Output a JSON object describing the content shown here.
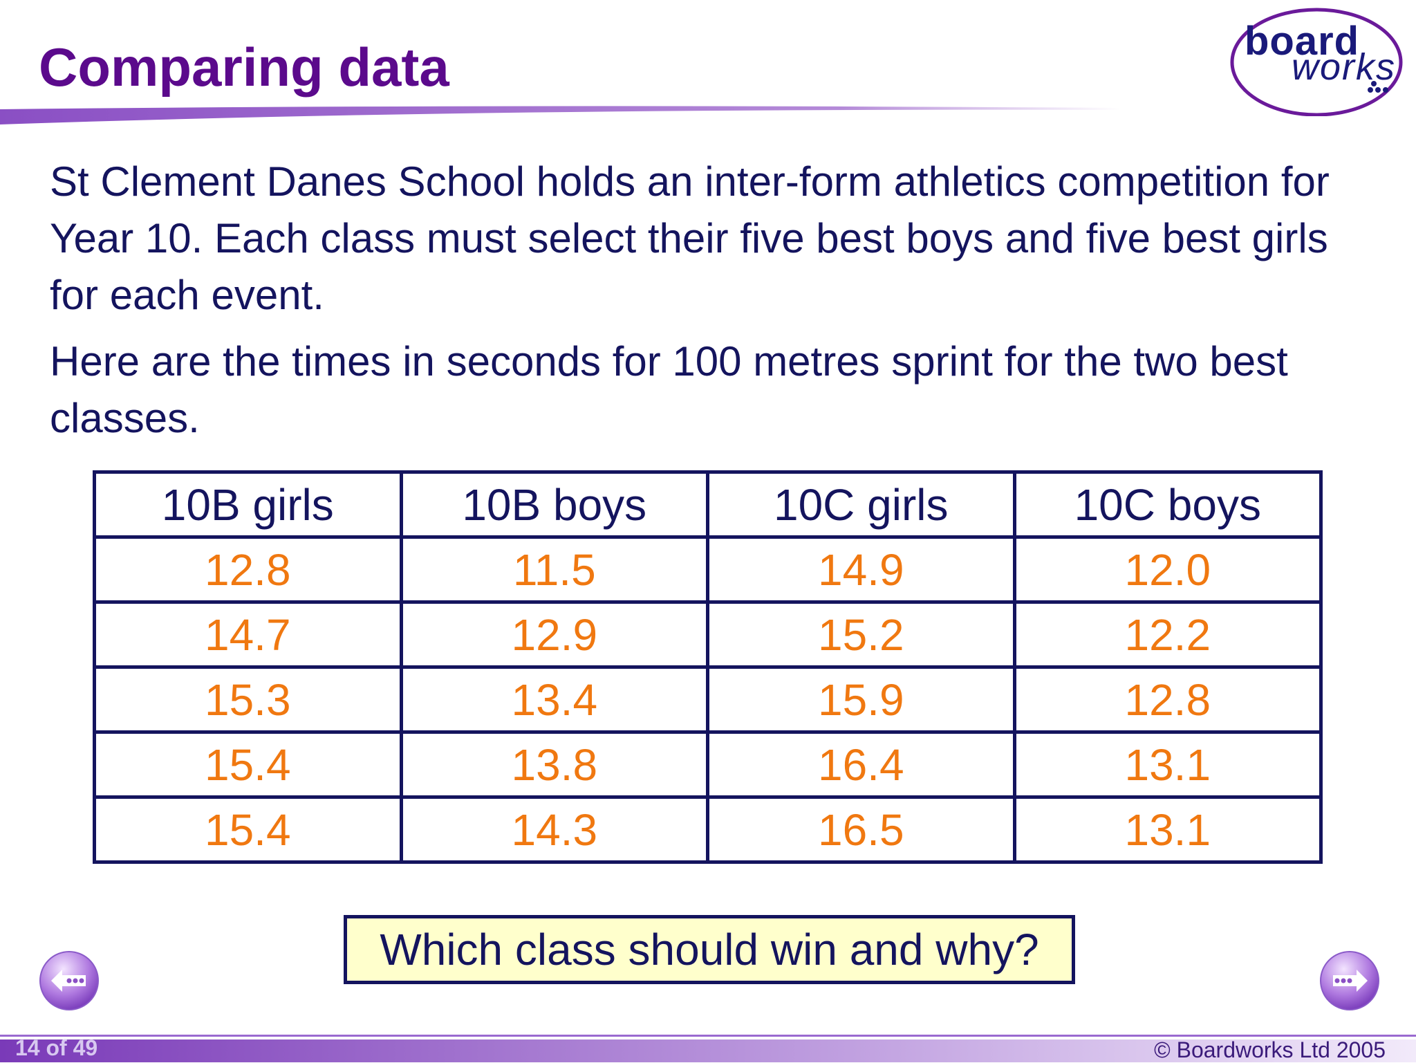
{
  "title": "Comparing data",
  "logo": {
    "word1": "board",
    "word2": "works"
  },
  "intro": [
    "St Clement Danes School holds an inter-form athletics competition for Year 10. Each class must select their five best boys and five best girls for each event.",
    "Here are the times in seconds for 100 metres sprint for the two best classes."
  ],
  "table": {
    "headers": [
      "10B girls",
      "10B boys",
      "10C girls",
      "10C boys"
    ],
    "rows": [
      [
        "12.8",
        "11.5",
        "14.9",
        "12.0"
      ],
      [
        "14.7",
        "12.9",
        "15.2",
        "12.2"
      ],
      [
        "15.3",
        "13.4",
        "15.9",
        "12.8"
      ],
      [
        "15.4",
        "13.8",
        "16.4",
        "13.1"
      ],
      [
        "15.4",
        "14.3",
        "16.5",
        "13.1"
      ]
    ]
  },
  "question": "Which class should win and why?",
  "footer": {
    "slide_number": "14 of 49",
    "copyright": "© Boardworks Ltd 2005"
  },
  "nav": {
    "prev_icon": "prev-arrow-icon",
    "next_icon": "next-arrow-icon"
  },
  "colors": {
    "title": "#5b0a8c",
    "text": "#14145e",
    "values": "#f07810",
    "question_bg": "#ffffcc"
  }
}
